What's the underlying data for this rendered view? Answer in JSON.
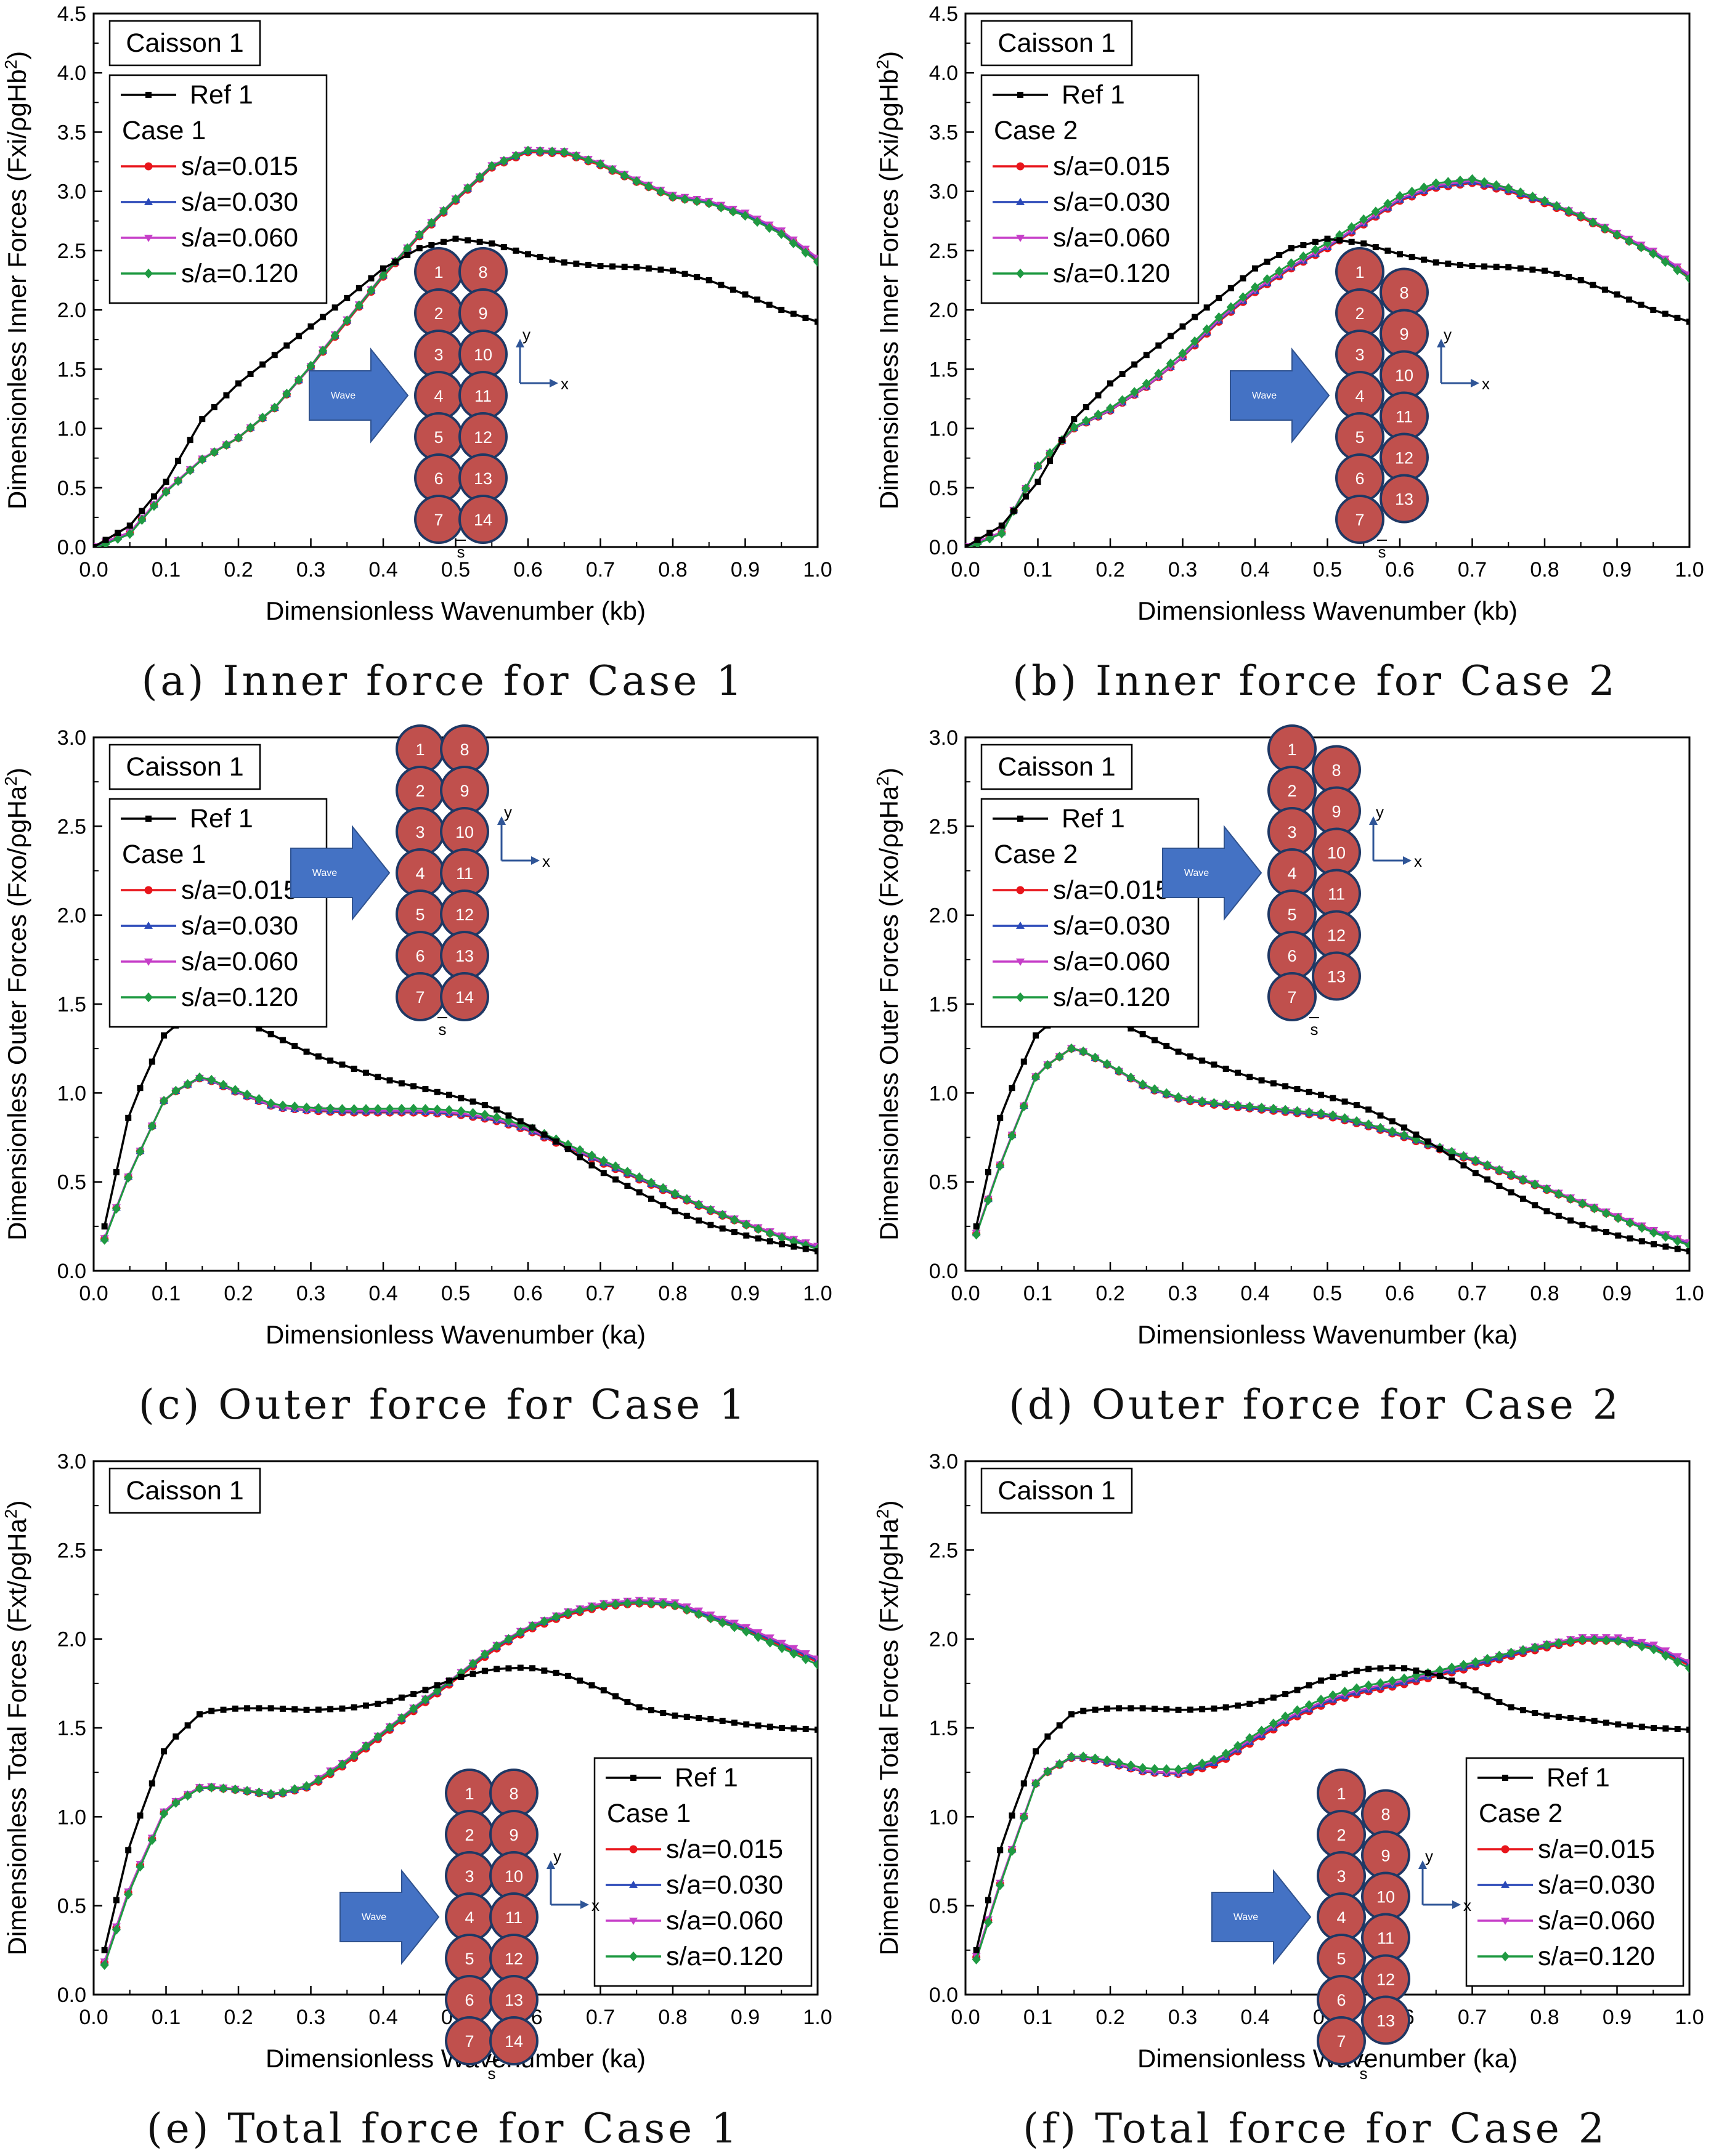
{
  "chart_data": [
    {
      "type": "line",
      "caption": "(a) Inner force for Case 1",
      "box_label": "Caisson 1",
      "xlabel": "Dimensionless Wavenumber (kb)",
      "ylabel_prefix": "Dimensionless Inner Forces (Fxi/ρgHb",
      "ylabel_sup": "2",
      "ylabel_suffix": ")",
      "xlim": [
        0,
        1.0
      ],
      "ylim": [
        0,
        4.5
      ],
      "xticks": [
        "0.0",
        "0.1",
        "0.2",
        "0.3",
        "0.4",
        "0.5",
        "0.6",
        "0.7",
        "0.8",
        "0.9",
        "1.0"
      ],
      "yticks": [
        "0.0",
        "0.5",
        "1.0",
        "1.5",
        "2.0",
        "2.5",
        "3.0",
        "3.5",
        "4.0",
        "4.5"
      ],
      "legend": {
        "position": "top-left",
        "ref": "Ref 1",
        "case": "Case 1",
        "series": [
          "s/a=0.015",
          "s/a=0.030",
          "s/a=0.060",
          "s/a=0.120"
        ]
      },
      "inset": {
        "wave_label": "Wave",
        "left_column": [
          "1",
          "2",
          "3",
          "4",
          "5",
          "6",
          "7"
        ],
        "right_column": [
          "8",
          "9",
          "10",
          "11",
          "12",
          "13",
          "14"
        ],
        "y_label": "y",
        "x_label": "x",
        "gap_label": "s",
        "staggered": false
      },
      "ref_series": {
        "name": "Ref 1",
        "x": [
          0,
          0.05,
          0.1,
          0.15,
          0.2,
          0.25,
          0.3,
          0.35,
          0.4,
          0.45,
          0.5,
          0.55,
          0.6,
          0.65,
          0.7,
          0.75,
          0.8,
          0.85,
          0.9,
          0.95,
          1.0
        ],
        "y": [
          0,
          0.18,
          0.55,
          1.08,
          1.38,
          1.62,
          1.86,
          2.1,
          2.35,
          2.52,
          2.6,
          2.56,
          2.47,
          2.4,
          2.37,
          2.36,
          2.33,
          2.25,
          2.13,
          2.0,
          1.9
        ]
      },
      "case_series": {
        "x": [
          0,
          0.05,
          0.1,
          0.15,
          0.2,
          0.25,
          0.3,
          0.35,
          0.4,
          0.45,
          0.5,
          0.55,
          0.6,
          0.65,
          0.7,
          0.75,
          0.8,
          0.85,
          0.9,
          0.95,
          1.0
        ],
        "y": [
          0,
          0.12,
          0.47,
          0.74,
          0.92,
          1.17,
          1.52,
          1.9,
          2.28,
          2.62,
          2.92,
          3.2,
          3.33,
          3.32,
          3.22,
          3.08,
          2.95,
          2.9,
          2.8,
          2.65,
          2.42
        ],
        "offsets": [
          0,
          0.01,
          0.02,
          0.03
        ],
        "delta_120": 0.03
      },
      "colors": {
        "ref": "#000000",
        "s015": "#e8151b",
        "s030": "#2a48b8",
        "s060": "#c63fc8",
        "s120": "#1f9a42"
      }
    },
    {
      "type": "line",
      "caption": "(b) Inner force for Case 2",
      "box_label": "Caisson 1",
      "xlabel": "Dimensionless Wavenumber (kb)",
      "ylabel_prefix": "Dimensionless Inner Forces (Fxi/ρgHb",
      "ylabel_sup": "2",
      "ylabel_suffix": ")",
      "xlim": [
        0,
        1.0
      ],
      "ylim": [
        0,
        4.5
      ],
      "xticks": [
        "0.0",
        "0.1",
        "0.2",
        "0.3",
        "0.4",
        "0.5",
        "0.6",
        "0.7",
        "0.8",
        "0.9",
        "1.0"
      ],
      "yticks": [
        "0.0",
        "0.5",
        "1.0",
        "1.5",
        "2.0",
        "2.5",
        "3.0",
        "3.5",
        "4.0",
        "4.5"
      ],
      "legend": {
        "position": "top-left",
        "ref": "Ref 1",
        "case": "Case 2",
        "series": [
          "s/a=0.015",
          "s/a=0.030",
          "s/a=0.060",
          "s/a=0.120"
        ]
      },
      "inset": {
        "wave_label": "Wave",
        "left_column": [
          "1",
          "2",
          "3",
          "4",
          "5",
          "6",
          "7"
        ],
        "right_column": [
          "8",
          "9",
          "10",
          "11",
          "12",
          "13"
        ],
        "y_label": "y",
        "x_label": "x",
        "gap_label": "s",
        "staggered": true
      },
      "ref_series": {
        "name": "Ref 1",
        "x": [
          0,
          0.05,
          0.1,
          0.15,
          0.2,
          0.25,
          0.3,
          0.35,
          0.4,
          0.45,
          0.5,
          0.55,
          0.6,
          0.65,
          0.7,
          0.75,
          0.8,
          0.85,
          0.9,
          0.95,
          1.0
        ],
        "y": [
          0,
          0.18,
          0.55,
          1.08,
          1.38,
          1.62,
          1.86,
          2.1,
          2.35,
          2.52,
          2.6,
          2.56,
          2.47,
          2.4,
          2.37,
          2.36,
          2.33,
          2.25,
          2.13,
          2.0,
          1.9
        ]
      },
      "case_series": {
        "x": [
          0,
          0.05,
          0.1,
          0.15,
          0.2,
          0.25,
          0.3,
          0.35,
          0.4,
          0.45,
          0.5,
          0.55,
          0.6,
          0.65,
          0.7,
          0.75,
          0.8,
          0.85,
          0.9,
          0.95,
          1.0
        ],
        "y": [
          0,
          0.12,
          0.68,
          1.0,
          1.15,
          1.35,
          1.6,
          1.9,
          2.15,
          2.35,
          2.52,
          2.72,
          2.92,
          3.03,
          3.07,
          3.0,
          2.9,
          2.78,
          2.63,
          2.48,
          2.28
        ],
        "offsets": [
          0,
          0.01,
          0.02,
          0.03
        ],
        "delta_120": 0.06
      },
      "colors": {
        "ref": "#000000",
        "s015": "#e8151b",
        "s030": "#2a48b8",
        "s060": "#c63fc8",
        "s120": "#1f9a42"
      }
    },
    {
      "type": "line",
      "caption": "(c) Outer force for Case 1",
      "box_label": "Caisson 1",
      "xlabel": "Dimensionless Wavenumber (ka)",
      "ylabel_prefix": "Dimensionless Outer Forces (Fxo/ρgHa",
      "ylabel_sup": "2",
      "ylabel_suffix": ")",
      "xlim": [
        0,
        1.0
      ],
      "ylim": [
        0,
        3.0
      ],
      "xticks": [
        "0.0",
        "0.1",
        "0.2",
        "0.3",
        "0.4",
        "0.5",
        "0.6",
        "0.7",
        "0.8",
        "0.9",
        "1.0"
      ],
      "yticks": [
        "0.0",
        "0.5",
        "1.0",
        "1.5",
        "2.0",
        "2.5",
        "3.0"
      ],
      "legend": {
        "position": "top-left",
        "ref": "Ref 1",
        "case": "Case 1",
        "series": [
          "s/a=0.015",
          "s/a=0.030",
          "s/a=0.060",
          "s/a=0.120"
        ]
      },
      "inset": {
        "wave_label": "Wave",
        "left_column": [
          "1",
          "2",
          "3",
          "4",
          "5",
          "6",
          "7"
        ],
        "right_column": [
          "8",
          "9",
          "10",
          "11",
          "12",
          "13",
          "14"
        ],
        "y_label": "y",
        "x_label": "x",
        "gap_label": "s",
        "staggered": false
      },
      "ref_series": {
        "name": "Ref 1",
        "x": [
          0.015,
          0.05,
          0.1,
          0.15,
          0.2,
          0.25,
          0.3,
          0.35,
          0.4,
          0.45,
          0.5,
          0.55,
          0.6,
          0.65,
          0.7,
          0.75,
          0.8,
          0.85,
          0.9,
          0.95,
          1.0
        ],
        "y": [
          0.25,
          0.9,
          1.35,
          1.46,
          1.42,
          1.32,
          1.22,
          1.15,
          1.08,
          1.03,
          0.98,
          0.92,
          0.82,
          0.7,
          0.56,
          0.45,
          0.34,
          0.26,
          0.2,
          0.15,
          0.11
        ]
      },
      "case_series": {
        "x": [
          0.015,
          0.05,
          0.1,
          0.15,
          0.2,
          0.25,
          0.3,
          0.35,
          0.4,
          0.45,
          0.5,
          0.55,
          0.6,
          0.65,
          0.7,
          0.75,
          0.8,
          0.85,
          0.9,
          0.95,
          1.0
        ],
        "y": [
          0.18,
          0.55,
          0.98,
          1.09,
          1.0,
          0.92,
          0.9,
          0.89,
          0.89,
          0.89,
          0.88,
          0.85,
          0.79,
          0.7,
          0.61,
          0.52,
          0.43,
          0.34,
          0.26,
          0.19,
          0.13
        ],
        "offsets": [
          0,
          0.005,
          0.01,
          0.015
        ],
        "delta_120": 0.03
      },
      "colors": {
        "ref": "#000000",
        "s015": "#e8151b",
        "s030": "#2a48b8",
        "s060": "#c63fc8",
        "s120": "#1f9a42"
      }
    },
    {
      "type": "line",
      "caption": "(d) Outer force for Case 2",
      "box_label": "Caisson 1",
      "xlabel": "Dimensionless Wavenumber (ka)",
      "ylabel_prefix": "Dimensionless Outer Forces (Fxo/ρgHa",
      "ylabel_sup": "2",
      "ylabel_suffix": ")",
      "xlim": [
        0,
        1.0
      ],
      "ylim": [
        0,
        3.0
      ],
      "xticks": [
        "0.0",
        "0.1",
        "0.2",
        "0.3",
        "0.4",
        "0.5",
        "0.6",
        "0.7",
        "0.8",
        "0.9",
        "1.0"
      ],
      "yticks": [
        "0.0",
        "0.5",
        "1.0",
        "1.5",
        "2.0",
        "2.5",
        "3.0"
      ],
      "legend": {
        "position": "top-left",
        "ref": "Ref 1",
        "case": "Case 2",
        "series": [
          "s/a=0.015",
          "s/a=0.030",
          "s/a=0.060",
          "s/a=0.120"
        ]
      },
      "inset": {
        "wave_label": "Wave",
        "left_column": [
          "1",
          "2",
          "3",
          "4",
          "5",
          "6",
          "7"
        ],
        "right_column": [
          "8",
          "9",
          "10",
          "11",
          "12",
          "13"
        ],
        "y_label": "y",
        "x_label": "x",
        "gap_label": "s",
        "staggered": true
      },
      "ref_series": {
        "name": "Ref 1",
        "x": [
          0.015,
          0.05,
          0.1,
          0.15,
          0.2,
          0.25,
          0.3,
          0.35,
          0.4,
          0.45,
          0.5,
          0.55,
          0.6,
          0.65,
          0.7,
          0.75,
          0.8,
          0.85,
          0.9,
          0.95,
          1.0
        ],
        "y": [
          0.25,
          0.9,
          1.35,
          1.46,
          1.42,
          1.32,
          1.22,
          1.15,
          1.08,
          1.03,
          0.98,
          0.92,
          0.82,
          0.7,
          0.56,
          0.45,
          0.34,
          0.26,
          0.2,
          0.15,
          0.11
        ]
      },
      "case_series": {
        "x": [
          0.015,
          0.05,
          0.1,
          0.15,
          0.2,
          0.25,
          0.3,
          0.35,
          0.4,
          0.45,
          0.5,
          0.55,
          0.6,
          0.65,
          0.7,
          0.75,
          0.8,
          0.85,
          0.9,
          0.95,
          1.0
        ],
        "y": [
          0.21,
          0.62,
          1.12,
          1.26,
          1.15,
          1.03,
          0.96,
          0.93,
          0.91,
          0.89,
          0.87,
          0.82,
          0.76,
          0.69,
          0.62,
          0.54,
          0.46,
          0.38,
          0.3,
          0.22,
          0.15
        ],
        "offsets": [
          0,
          0.005,
          0.01,
          0.015
        ],
        "delta_120": 0.02
      },
      "colors": {
        "ref": "#000000",
        "s015": "#e8151b",
        "s030": "#2a48b8",
        "s060": "#c63fc8",
        "s120": "#1f9a42"
      }
    },
    {
      "type": "line",
      "caption": "(e) Total force for Case 1",
      "box_label": "Caisson 1",
      "xlabel": "Dimensionless Wavenumber (ka)",
      "ylabel_prefix": "Dimensionless Total Forces (Fxt/ρgHa",
      "ylabel_sup": "2",
      "ylabel_suffix": ")",
      "xlim": [
        0,
        1.0
      ],
      "ylim": [
        0,
        3.0
      ],
      "xticks": [
        "0.0",
        "0.1",
        "0.2",
        "0.3",
        "0.4",
        "0.5",
        "0.6",
        "0.7",
        "0.8",
        "0.9",
        "1.0"
      ],
      "yticks": [
        "0.0",
        "0.5",
        "1.0",
        "1.5",
        "2.0",
        "2.5",
        "3.0"
      ],
      "legend": {
        "position": "bottom-right",
        "ref": "Ref 1",
        "case": "Case 1",
        "series": [
          "s/a=0.015",
          "s/a=0.030",
          "s/a=0.060",
          "s/a=0.120"
        ]
      },
      "inset": {
        "wave_label": "Wave",
        "left_column": [
          "1",
          "2",
          "3",
          "4",
          "5",
          "6",
          "7"
        ],
        "right_column": [
          "8",
          "9",
          "10",
          "11",
          "12",
          "13",
          "14"
        ],
        "y_label": "y",
        "x_label": "x",
        "gap_label": "s",
        "staggered": false
      },
      "ref_series": {
        "name": "Ref 1",
        "x": [
          0.015,
          0.05,
          0.1,
          0.15,
          0.2,
          0.25,
          0.3,
          0.35,
          0.4,
          0.45,
          0.5,
          0.55,
          0.6,
          0.65,
          0.7,
          0.75,
          0.8,
          0.85,
          0.9,
          0.95,
          1.0
        ],
        "y": [
          0.25,
          0.85,
          1.4,
          1.59,
          1.61,
          1.61,
          1.6,
          1.61,
          1.64,
          1.7,
          1.78,
          1.83,
          1.84,
          1.8,
          1.72,
          1.62,
          1.57,
          1.55,
          1.52,
          1.5,
          1.49
        ]
      },
      "case_series": {
        "x": [
          0.015,
          0.05,
          0.1,
          0.15,
          0.2,
          0.25,
          0.3,
          0.35,
          0.4,
          0.45,
          0.5,
          0.55,
          0.6,
          0.65,
          0.7,
          0.75,
          0.8,
          0.85,
          0.9,
          0.95,
          1.0
        ],
        "y": [
          0.18,
          0.6,
          1.05,
          1.17,
          1.15,
          1.12,
          1.17,
          1.3,
          1.46,
          1.62,
          1.77,
          1.93,
          2.05,
          2.13,
          2.18,
          2.2,
          2.19,
          2.12,
          2.05,
          1.96,
          1.87
        ],
        "offsets": [
          0,
          0.01,
          0.02,
          0.03
        ],
        "delta_120": 0.03
      },
      "colors": {
        "ref": "#000000",
        "s015": "#e8151b",
        "s030": "#2a48b8",
        "s060": "#c63fc8",
        "s120": "#1f9a42"
      }
    },
    {
      "type": "line",
      "caption": "(f) Total force for Case 2",
      "box_label": "Caisson 1",
      "xlabel": "Dimensionless Wavenumber (ka)",
      "ylabel_prefix": "Dimensionless Total Forces (Fxt/ρgHa",
      "ylabel_sup": "2",
      "ylabel_suffix": ")",
      "xlim": [
        0,
        1.0
      ],
      "ylim": [
        0,
        3.0
      ],
      "xticks": [
        "0.0",
        "0.1",
        "0.2",
        "0.3",
        "0.4",
        "0.5",
        "0.6",
        "0.7",
        "0.8",
        "0.9",
        "1.0"
      ],
      "yticks": [
        "0.0",
        "0.5",
        "1.0",
        "1.5",
        "2.0",
        "2.5",
        "3.0"
      ],
      "legend": {
        "position": "bottom-right",
        "ref": "Ref 1",
        "case": "Case 2",
        "series": [
          "s/a=0.015",
          "s/a=0.030",
          "s/a=0.060",
          "s/a=0.120"
        ]
      },
      "inset": {
        "wave_label": "Wave",
        "left_column": [
          "1",
          "2",
          "3",
          "4",
          "5",
          "6",
          "7"
        ],
        "right_column": [
          "8",
          "9",
          "10",
          "11",
          "12",
          "13"
        ],
        "y_label": "y",
        "x_label": "x",
        "gap_label": "s",
        "staggered": true
      },
      "ref_series": {
        "name": "Ref 1",
        "x": [
          0.015,
          0.05,
          0.1,
          0.15,
          0.2,
          0.25,
          0.3,
          0.35,
          0.4,
          0.45,
          0.5,
          0.55,
          0.6,
          0.65,
          0.7,
          0.75,
          0.8,
          0.85,
          0.9,
          0.95,
          1.0
        ],
        "y": [
          0.25,
          0.85,
          1.4,
          1.59,
          1.61,
          1.61,
          1.6,
          1.61,
          1.64,
          1.7,
          1.78,
          1.83,
          1.84,
          1.8,
          1.72,
          1.62,
          1.57,
          1.55,
          1.52,
          1.5,
          1.49
        ]
      },
      "case_series": {
        "x": [
          0.015,
          0.05,
          0.1,
          0.15,
          0.2,
          0.25,
          0.3,
          0.35,
          0.4,
          0.45,
          0.5,
          0.55,
          0.6,
          0.65,
          0.7,
          0.75,
          0.8,
          0.85,
          0.9,
          0.95,
          1.0
        ],
        "y": [
          0.21,
          0.65,
          1.22,
          1.34,
          1.3,
          1.25,
          1.24,
          1.3,
          1.43,
          1.55,
          1.64,
          1.7,
          1.74,
          1.79,
          1.84,
          1.9,
          1.95,
          1.99,
          1.99,
          1.95,
          1.85
        ],
        "offsets": [
          0,
          0.01,
          0.02,
          0.03
        ],
        "delta_120": 0.05
      },
      "colors": {
        "ref": "#000000",
        "s015": "#e8151b",
        "s030": "#2a48b8",
        "s060": "#c63fc8",
        "s120": "#1f9a42"
      }
    }
  ]
}
